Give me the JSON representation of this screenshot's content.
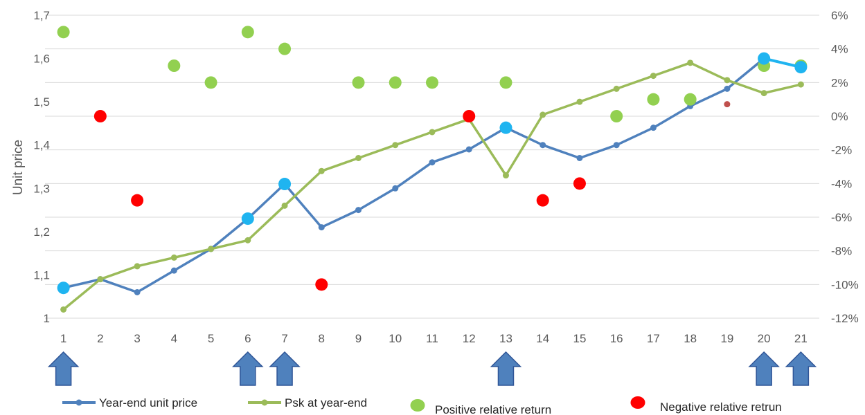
{
  "chart_data": {
    "type": "line",
    "title": "",
    "xlabel": "",
    "ylabel": "Unit price",
    "categories": [
      "1",
      "2",
      "3",
      "4",
      "5",
      "6",
      "7",
      "8",
      "9",
      "10",
      "11",
      "12",
      "13",
      "14",
      "15",
      "16",
      "17",
      "18",
      "19",
      "20",
      "21"
    ],
    "y_axis": {
      "range": [
        1,
        1.7
      ],
      "tick_labels": [
        "1",
        "1,1",
        "1,2",
        "1,3",
        "1,4",
        "1,5",
        "1,6",
        "1,7"
      ]
    },
    "y2_axis": {
      "range": [
        -12,
        6
      ],
      "unit": "%",
      "tick_labels": [
        "-12%",
        "-10%",
        "-8%",
        "-6%",
        "-4%",
        "-2%",
        "0%",
        "2%",
        "4%",
        "6%"
      ]
    },
    "series": [
      {
        "name": "Year-end unit price",
        "kind": "line",
        "axis": "left",
        "color": "#4f81bd",
        "values": [
          1.07,
          1.09,
          1.06,
          1.11,
          1.16,
          1.23,
          1.31,
          1.21,
          1.25,
          1.3,
          1.36,
          1.39,
          1.44,
          1.4,
          1.37,
          1.4,
          1.44,
          1.49,
          1.53,
          1.6,
          1.58
        ],
        "highlight_color": "#1fb4f0",
        "highlighted_points": [
          1,
          6,
          7,
          13,
          20,
          21
        ]
      },
      {
        "name": "Psk at year-end",
        "kind": "line",
        "axis": "left",
        "color": "#9bbb59",
        "values": [
          1.02,
          1.09,
          1.12,
          1.14,
          1.16,
          1.18,
          1.26,
          1.34,
          1.37,
          1.4,
          1.43,
          1.46,
          1.33,
          1.47,
          1.5,
          1.53,
          1.56,
          1.59,
          1.55,
          1.52,
          1.54
        ]
      },
      {
        "name": "Positive relative return",
        "kind": "scatter",
        "axis": "right",
        "color": "#92d050",
        "points": [
          [
            1,
            5
          ],
          [
            4,
            3
          ],
          [
            5,
            2
          ],
          [
            6,
            5
          ],
          [
            7,
            4
          ],
          [
            9,
            2
          ],
          [
            10,
            2
          ],
          [
            11,
            2
          ],
          [
            13,
            2
          ],
          [
            16,
            0
          ],
          [
            17,
            1
          ],
          [
            18,
            1
          ],
          [
            20,
            3
          ],
          [
            21,
            3
          ]
        ]
      },
      {
        "name": "Negative relative retrun",
        "kind": "scatter",
        "axis": "right",
        "color": "#ff0000",
        "points": [
          [
            2,
            0
          ],
          [
            3,
            -5
          ],
          [
            8,
            -10
          ],
          [
            12,
            0
          ],
          [
            14,
            -5
          ],
          [
            15,
            -4
          ],
          [
            19,
            1
          ]
        ]
      }
    ],
    "markers": {
      "icon": "up-arrow-icon",
      "color": "#4f81bd",
      "positions": [
        1,
        6,
        7,
        13,
        20,
        21
      ]
    },
    "grid": true,
    "legend_position": "bottom",
    "legend": [
      "Year-end unit price",
      "Psk at year-end",
      "Positive relative return",
      "Negative relative retrun"
    ]
  },
  "colors": {
    "grid": "#d9d9d9",
    "axis_text": "#595959"
  }
}
